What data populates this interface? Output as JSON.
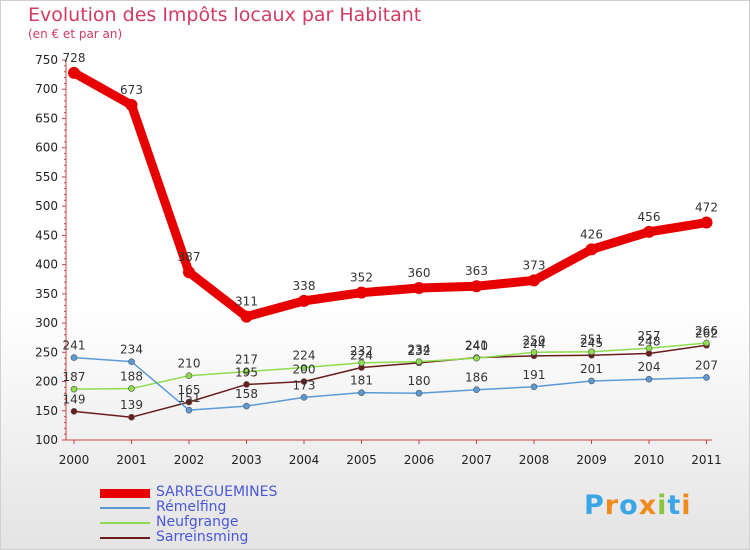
{
  "header": {
    "title": "Evolution des Impôts locaux par Habitant",
    "subtitle": "(en € et par an)"
  },
  "chart_data": {
    "type": "line",
    "title": "Evolution des Impôts locaux par Habitant",
    "subtitle": "(en € et par an)",
    "xlabel": "",
    "ylabel": "",
    "ylim": [
      100,
      750
    ],
    "yticks": [
      100,
      150,
      200,
      250,
      300,
      350,
      400,
      450,
      500,
      550,
      600,
      650,
      700,
      750
    ],
    "categories": [
      "2000",
      "2001",
      "2002",
      "2003",
      "2004",
      "2005",
      "2006",
      "2007",
      "2008",
      "2009",
      "2010",
      "2011"
    ],
    "grid": false,
    "legend_position": "bottom-left",
    "series": [
      {
        "name": "SARREGUEMINES",
        "color": "#e60000",
        "values": [
          728,
          673,
          387,
          311,
          338,
          352,
          360,
          363,
          373,
          426,
          456,
          472
        ]
      },
      {
        "name": "Rémelfing",
        "color": "#5b9bd5",
        "values": [
          241,
          234,
          151,
          158,
          173,
          181,
          180,
          186,
          191,
          201,
          204,
          207
        ]
      },
      {
        "name": "Neufgrange",
        "color": "#8fdc4f",
        "values": [
          187,
          188,
          210,
          217,
          224,
          232,
          234,
          240,
          250,
          251,
          257,
          266
        ]
      },
      {
        "name": "Sarreinsming",
        "color": "#6b1c1c",
        "values": [
          149,
          139,
          165,
          195,
          200,
          224,
          232,
          241,
          244,
          245,
          248,
          262
        ]
      }
    ]
  },
  "logo": {
    "letters": [
      "P",
      "r",
      "o",
      "x",
      "i",
      "t",
      "i"
    ],
    "colors": [
      "#3aa6e8",
      "#f08a1c",
      "#3aa6e8",
      "#f08a1c",
      "#8cc63f",
      "#3aa6e8",
      "#f08a1c"
    ]
  }
}
